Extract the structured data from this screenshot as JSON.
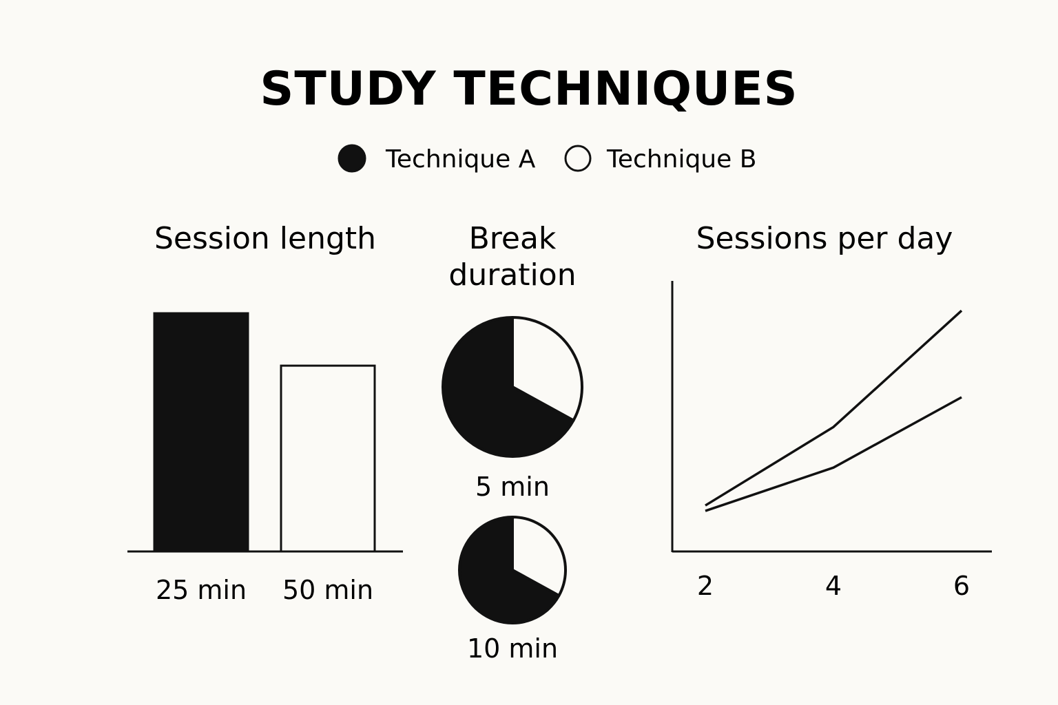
{
  "title": "STUDY TECHNIQUES",
  "legend": [
    {
      "label": "Technique A",
      "style": "filled"
    },
    {
      "label": "Technique B",
      "style": "outline"
    }
  ],
  "colors": {
    "ink": "#111111",
    "paper": "#fbfaf6"
  },
  "chart_data": [
    {
      "type": "bar",
      "title": "Session length",
      "categories": [
        "25 min",
        "50 min"
      ],
      "values": [
        100,
        78
      ],
      "series_styles": [
        "filled",
        "outline"
      ],
      "ylim": [
        0,
        100
      ]
    },
    {
      "type": "pie",
      "title_lines": [
        "Break",
        "duration"
      ],
      "pies": [
        {
          "label": "5 min",
          "slices": [
            {
              "style": "filled",
              "value": 67
            },
            {
              "style": "outline",
              "value": 33
            }
          ]
        },
        {
          "label": "10 min",
          "slices": [
            {
              "style": "filled",
              "value": 67
            },
            {
              "style": "outline",
              "value": 33
            }
          ]
        }
      ]
    },
    {
      "type": "line",
      "title": "Sessions per day",
      "x": [
        2,
        4,
        6
      ],
      "xticks": [
        "2",
        "4",
        "6"
      ],
      "series": [
        {
          "values": [
            17,
            46,
            89
          ]
        },
        {
          "values": [
            15,
            31,
            57
          ]
        }
      ],
      "ylim": [
        0,
        100
      ]
    }
  ]
}
